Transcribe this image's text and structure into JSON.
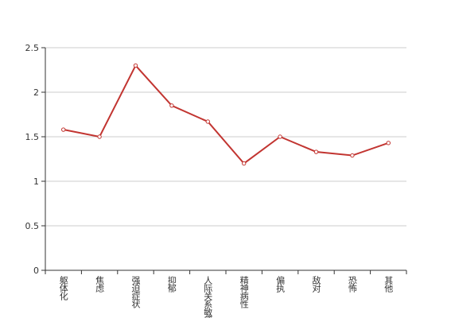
{
  "chart_data": {
    "type": "line",
    "categories": [
      "躯体化",
      "焦虑",
      "强迫症状",
      "抑郁",
      "人际关系敏感",
      "精神病性",
      "偏执",
      "敌对",
      "恐怖",
      "其他"
    ],
    "values": [
      1.58,
      1.5,
      2.3,
      1.85,
      1.67,
      1.2,
      1.5,
      1.33,
      1.29,
      1.43
    ],
    "color": "#c23531",
    "ylim": [
      0,
      2.5
    ],
    "yticks": [
      0,
      0.5,
      1,
      1.5,
      2,
      2.5
    ],
    "grid": true
  }
}
